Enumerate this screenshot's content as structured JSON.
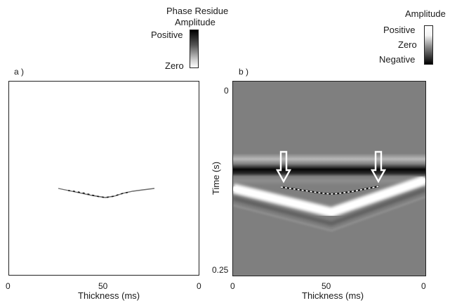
{
  "legend_phase": {
    "title_line1": "Phase Residue",
    "title_line2": "Amplitude",
    "top_label": "Positive",
    "bottom_label": "Zero"
  },
  "legend_amplitude": {
    "title": "Amplitude",
    "top_label": "Positive",
    "middle_label": "Zero",
    "bottom_label": "Negative"
  },
  "panel_a": {
    "letter": "a )",
    "x_ticks": [
      "0",
      "50",
      "0"
    ],
    "x_label": "Thickness (ms)"
  },
  "panel_b": {
    "letter": "b )",
    "x_ticks": [
      "0",
      "50",
      "0"
    ],
    "x_label": "Thickness (ms)",
    "y_label": "Time (s)",
    "y_ticks": [
      "0",
      "0.25"
    ],
    "arrow_count": 2
  },
  "colors": {
    "background_gray": "#7f7f7f",
    "frame": "#222222",
    "arrow": "#ffffff"
  }
}
